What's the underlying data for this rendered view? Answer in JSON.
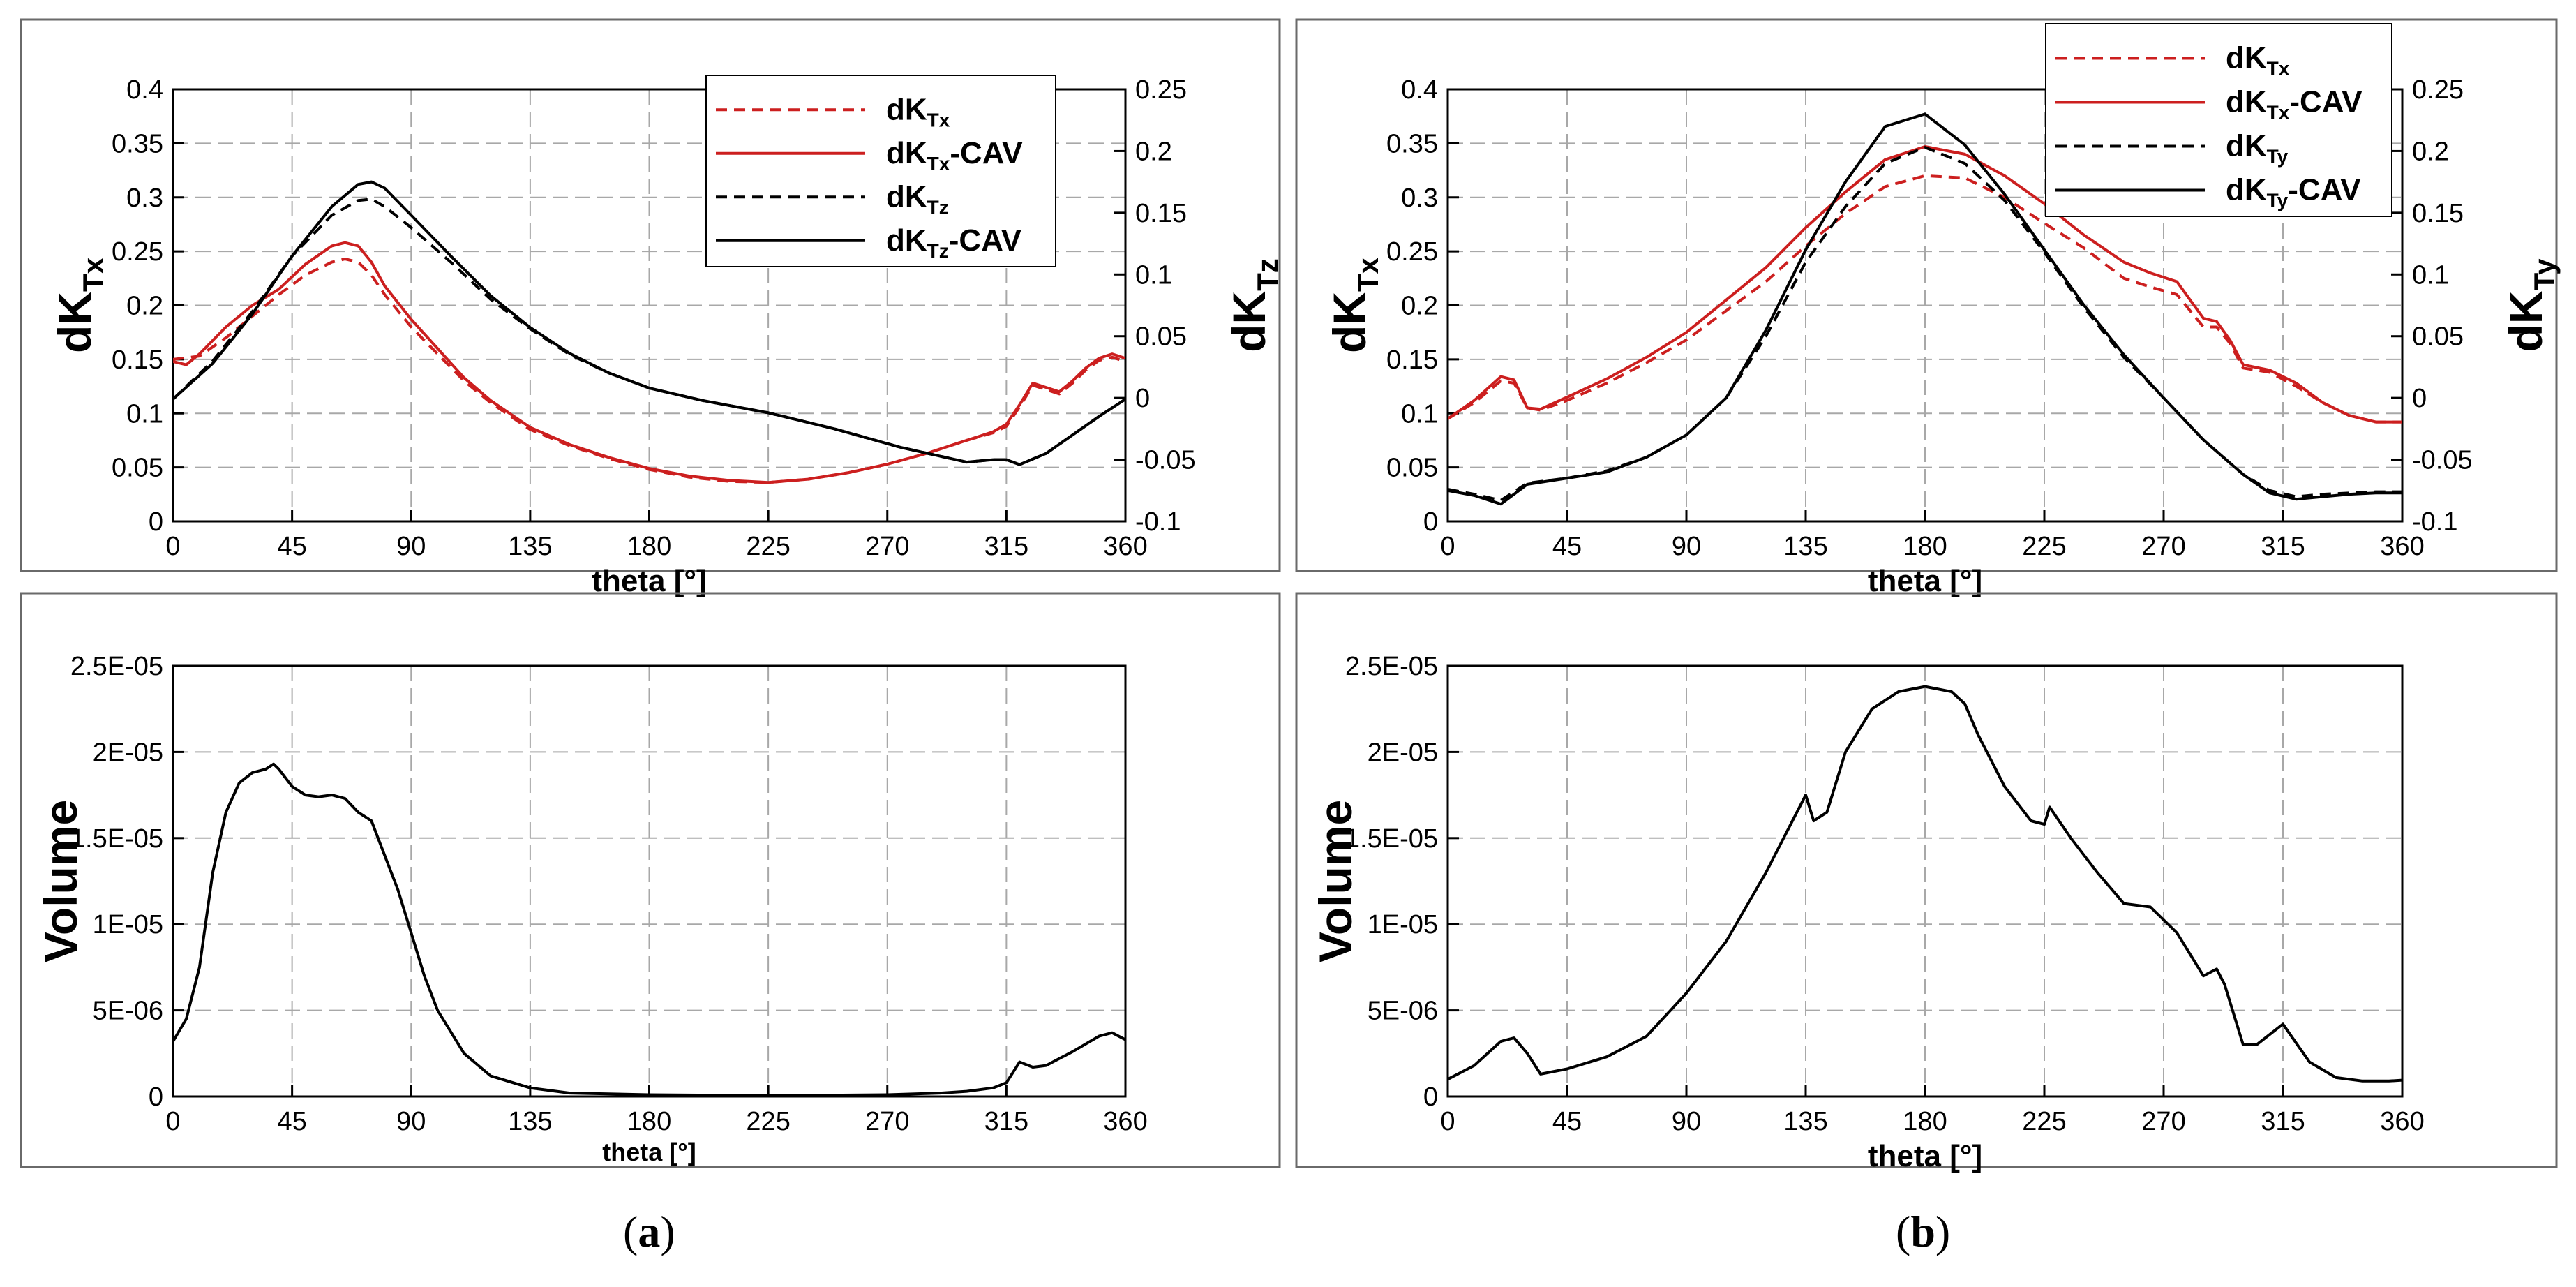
{
  "figure": {
    "captions": [
      {
        "open": "(",
        "letter": "a",
        "close": ")"
      },
      {
        "open": "(",
        "letter": "b",
        "close": ")"
      }
    ]
  },
  "colors": {
    "red": "#cc1f1f",
    "black": "#000000",
    "grid": "#a8a8a8",
    "frame": "#6a6a6a"
  },
  "chart_data": [
    {
      "id": "a-top",
      "type": "line",
      "xlabel": "theta [°]",
      "ylabel": {
        "base": "dK",
        "sub": "Tx"
      },
      "y2label": {
        "base": "dK",
        "sub": "Tz"
      },
      "xlim": [
        0,
        360
      ],
      "xticks": [
        0,
        45,
        90,
        135,
        180,
        225,
        270,
        315,
        360
      ],
      "ylim": [
        0,
        0.4
      ],
      "yticks": [
        0,
        0.05,
        0.1,
        0.15,
        0.2,
        0.25,
        0.3,
        0.35,
        0.4
      ],
      "ytick_labels": [
        "0",
        "0.05",
        "0.1",
        "0.15",
        "0.2",
        "0.25",
        "0.3",
        "0.35",
        "0.4"
      ],
      "y2lim": [
        -0.1,
        0.25
      ],
      "y2ticks": [
        -0.1,
        -0.05,
        0,
        0.05,
        0.1,
        0.15,
        0.2,
        0.25
      ],
      "y2tick_labels": [
        "-0.1",
        "-0.05",
        "0",
        "0.05",
        "0.1",
        "0.15",
        "0.2",
        "0.25"
      ],
      "legend": {
        "placement": "top-right"
      },
      "series": [
        {
          "name": {
            "base": "dK",
            "sub": "Tx",
            "suffix": ""
          },
          "color": "#cc1f1f",
          "dash": true,
          "axis": "left",
          "x": [
            0,
            10,
            20,
            30,
            40,
            50,
            60,
            65,
            70,
            75,
            80,
            90,
            100,
            110,
            120,
            135,
            150,
            165,
            180,
            195,
            210,
            225,
            240,
            255,
            270,
            285,
            300,
            310,
            315,
            320,
            325,
            330,
            335,
            340,
            345,
            350,
            355,
            360
          ],
          "y": [
            0.15,
            0.153,
            0.17,
            0.19,
            0.21,
            0.228,
            0.24,
            0.243,
            0.24,
            0.228,
            0.21,
            0.18,
            0.155,
            0.13,
            0.11,
            0.085,
            0.07,
            0.058,
            0.048,
            0.041,
            0.037,
            0.036,
            0.039,
            0.045,
            0.053,
            0.063,
            0.075,
            0.082,
            0.088,
            0.106,
            0.126,
            0.122,
            0.118,
            0.128,
            0.14,
            0.149,
            0.152,
            0.148
          ]
        },
        {
          "name": {
            "base": "dK",
            "sub": "Tx",
            "suffix": "-CAV"
          },
          "color": "#cc1f1f",
          "dash": false,
          "axis": "left",
          "x": [
            0,
            5,
            10,
            20,
            30,
            40,
            50,
            60,
            65,
            70,
            75,
            80,
            90,
            100,
            110,
            120,
            135,
            150,
            165,
            180,
            195,
            210,
            225,
            240,
            255,
            270,
            285,
            300,
            310,
            315,
            320,
            325,
            330,
            335,
            340,
            345,
            350,
            355,
            360
          ],
          "y": [
            0.148,
            0.145,
            0.155,
            0.18,
            0.2,
            0.215,
            0.238,
            0.255,
            0.258,
            0.255,
            0.24,
            0.218,
            0.187,
            0.16,
            0.133,
            0.112,
            0.087,
            0.071,
            0.059,
            0.049,
            0.042,
            0.038,
            0.036,
            0.039,
            0.045,
            0.053,
            0.063,
            0.075,
            0.083,
            0.09,
            0.108,
            0.128,
            0.124,
            0.12,
            0.13,
            0.142,
            0.151,
            0.155,
            0.151
          ]
        },
        {
          "name": {
            "base": "dK",
            "sub": "Tz",
            "suffix": ""
          },
          "color": "#000000",
          "dash": true,
          "axis": "right",
          "x": [
            0,
            15,
            30,
            45,
            60,
            70,
            75,
            80,
            90,
            105,
            120,
            135,
            150,
            165,
            180,
            200,
            225,
            250,
            275,
            300,
            310,
            315,
            320,
            330,
            340,
            350,
            360
          ],
          "y": [
            -0.001,
            0.03,
            0.07,
            0.115,
            0.148,
            0.16,
            0.161,
            0.155,
            0.138,
            0.11,
            0.08,
            0.056,
            0.035,
            0.02,
            0.008,
            -0.002,
            -0.012,
            -0.025,
            -0.04,
            -0.052,
            -0.05,
            -0.05,
            -0.054,
            -0.045,
            -0.03,
            -0.015,
            -0.001
          ]
        },
        {
          "name": {
            "base": "dK",
            "sub": "Tz",
            "suffix": "-CAV"
          },
          "color": "#000000",
          "dash": false,
          "axis": "right",
          "x": [
            0,
            15,
            30,
            45,
            60,
            70,
            75,
            80,
            90,
            105,
            120,
            135,
            150,
            165,
            180,
            200,
            225,
            250,
            275,
            300,
            310,
            315,
            320,
            330,
            340,
            350,
            360
          ],
          "y": [
            -0.001,
            0.028,
            0.068,
            0.115,
            0.155,
            0.173,
            0.175,
            0.17,
            0.148,
            0.115,
            0.083,
            0.057,
            0.036,
            0.02,
            0.008,
            -0.002,
            -0.012,
            -0.025,
            -0.04,
            -0.052,
            -0.05,
            -0.05,
            -0.054,
            -0.045,
            -0.03,
            -0.015,
            -0.001
          ]
        }
      ]
    },
    {
      "id": "b-top",
      "type": "line",
      "xlabel": "theta [°]",
      "ylabel": {
        "base": "dK",
        "sub": "Tx"
      },
      "y2label": {
        "base": "dK",
        "sub": "Ty"
      },
      "xlim": [
        0,
        360
      ],
      "xticks": [
        0,
        45,
        90,
        135,
        180,
        225,
        270,
        315,
        360
      ],
      "ylim": [
        0,
        0.4
      ],
      "yticks": [
        0,
        0.05,
        0.1,
        0.15,
        0.2,
        0.25,
        0.3,
        0.35,
        0.4
      ],
      "ytick_labels": [
        "0",
        "0.05",
        "0.1",
        "0.15",
        "0.2",
        "0.25",
        "0.3",
        "0.35",
        "0.4"
      ],
      "y2lim": [
        -0.1,
        0.25
      ],
      "y2ticks": [
        -0.1,
        -0.05,
        0,
        0.05,
        0.1,
        0.15,
        0.2,
        0.25
      ],
      "y2tick_labels": [
        "-0.1",
        "-0.05",
        "0",
        "0.05",
        "0.1",
        "0.15",
        "0.2",
        "0.25"
      ],
      "legend": {
        "placement": "top-right"
      },
      "series": [
        {
          "name": {
            "base": "dK",
            "sub": "Tx",
            "suffix": ""
          },
          "color": "#cc1f1f",
          "dash": true,
          "axis": "left",
          "x": [
            0,
            10,
            20,
            25,
            30,
            35,
            45,
            60,
            75,
            90,
            105,
            120,
            135,
            150,
            165,
            180,
            195,
            210,
            225,
            240,
            255,
            265,
            275,
            285,
            290,
            295,
            300,
            310,
            320,
            330,
            340,
            350,
            360
          ],
          "y": [
            0.095,
            0.11,
            0.13,
            0.128,
            0.105,
            0.103,
            0.112,
            0.128,
            0.147,
            0.168,
            0.195,
            0.222,
            0.255,
            0.285,
            0.31,
            0.32,
            0.318,
            0.3,
            0.276,
            0.253,
            0.225,
            0.217,
            0.21,
            0.18,
            0.18,
            0.165,
            0.142,
            0.138,
            0.125,
            0.11,
            0.098,
            0.092,
            0.092
          ]
        },
        {
          "name": {
            "base": "dK",
            "sub": "Tx",
            "suffix": "-CAV"
          },
          "color": "#cc1f1f",
          "dash": false,
          "axis": "left",
          "x": [
            0,
            10,
            20,
            25,
            30,
            35,
            45,
            60,
            75,
            90,
            105,
            120,
            135,
            150,
            165,
            180,
            195,
            210,
            225,
            240,
            255,
            265,
            275,
            285,
            290,
            295,
            300,
            310,
            320,
            330,
            340,
            350,
            360
          ],
          "y": [
            0.095,
            0.112,
            0.134,
            0.131,
            0.105,
            0.104,
            0.115,
            0.132,
            0.152,
            0.175,
            0.205,
            0.235,
            0.272,
            0.305,
            0.335,
            0.347,
            0.34,
            0.32,
            0.294,
            0.265,
            0.24,
            0.23,
            0.222,
            0.188,
            0.185,
            0.168,
            0.145,
            0.14,
            0.128,
            0.11,
            0.098,
            0.092,
            0.092
          ]
        },
        {
          "name": {
            "base": "dK",
            "sub": "Ty",
            "suffix": ""
          },
          "color": "#000000",
          "dash": true,
          "axis": "right",
          "x": [
            0,
            10,
            20,
            30,
            45,
            60,
            75,
            90,
            105,
            120,
            135,
            150,
            165,
            180,
            195,
            210,
            225,
            240,
            255,
            270,
            285,
            300,
            310,
            320,
            330,
            340,
            350,
            360
          ],
          "y": [
            -0.074,
            -0.078,
            -0.083,
            -0.069,
            -0.065,
            -0.059,
            -0.048,
            -0.03,
            0.0,
            0.05,
            0.11,
            0.155,
            0.19,
            0.203,
            0.19,
            0.16,
            0.118,
            0.073,
            0.033,
            0.0,
            -0.034,
            -0.062,
            -0.075,
            -0.08,
            -0.078,
            -0.077,
            -0.076,
            -0.076
          ]
        },
        {
          "name": {
            "base": "dK",
            "sub": "Ty",
            "suffix": "-CAV"
          },
          "color": "#000000",
          "dash": false,
          "axis": "right",
          "x": [
            0,
            10,
            20,
            30,
            45,
            60,
            75,
            90,
            105,
            120,
            135,
            150,
            165,
            180,
            195,
            210,
            225,
            240,
            255,
            270,
            285,
            300,
            310,
            320,
            330,
            340,
            350,
            360
          ],
          "y": [
            -0.075,
            -0.079,
            -0.086,
            -0.07,
            -0.065,
            -0.06,
            -0.048,
            -0.03,
            0.0,
            0.055,
            0.12,
            0.175,
            0.22,
            0.23,
            0.205,
            0.165,
            0.12,
            0.075,
            0.035,
            0.0,
            -0.034,
            -0.062,
            -0.077,
            -0.082,
            -0.08,
            -0.078,
            -0.077,
            -0.077
          ]
        }
      ]
    },
    {
      "id": "a-bottom",
      "type": "line",
      "xlabel": "theta [°]",
      "ylabel": {
        "base": "Volume",
        "sub": ""
      },
      "xlim": [
        0,
        360
      ],
      "xticks": [
        0,
        45,
        90,
        135,
        180,
        225,
        270,
        315,
        360
      ],
      "ylim": [
        0,
        2.5e-05
      ],
      "yticks": [
        0,
        5e-06,
        1e-05,
        1.5e-05,
        2e-05,
        2.5e-05
      ],
      "ytick_labels": [
        "0",
        "5E-06",
        "1E-05",
        "1.5E-05",
        "2E-05",
        "2.5E-05"
      ],
      "series": [
        {
          "name": {
            "base": "Volume",
            "sub": "",
            "suffix": ""
          },
          "color": "#000000",
          "dash": false,
          "axis": "left",
          "x": [
            0,
            5,
            10,
            15,
            20,
            25,
            30,
            35,
            38,
            40,
            45,
            50,
            55,
            60,
            65,
            70,
            75,
            80,
            85,
            90,
            95,
            100,
            110,
            120,
            135,
            150,
            180,
            225,
            270,
            290,
            300,
            310,
            315,
            320,
            325,
            330,
            340,
            350,
            355,
            360
          ],
          "y": [
            3.2e-06,
            4.5e-06,
            7.5e-06,
            1.3e-05,
            1.65e-05,
            1.82e-05,
            1.88e-05,
            1.9e-05,
            1.93e-05,
            1.9e-05,
            1.8e-05,
            1.75e-05,
            1.74e-05,
            1.75e-05,
            1.73e-05,
            1.65e-05,
            1.6e-05,
            1.4e-05,
            1.2e-05,
            9.5e-06,
            7e-06,
            5e-06,
            2.5e-06,
            1.2e-06,
            5e-07,
            2e-07,
            1e-07,
            5e-08,
            1e-07,
            2e-07,
            3e-07,
            5e-07,
            8e-07,
            2e-06,
            1.7e-06,
            1.8e-06,
            2.6e-06,
            3.5e-06,
            3.7e-06,
            3.3e-06
          ]
        }
      ]
    },
    {
      "id": "b-bottom",
      "type": "line",
      "xlabel": "theta [°]",
      "ylabel": {
        "base": "Volume",
        "sub": ""
      },
      "xlim": [
        0,
        360
      ],
      "xticks": [
        0,
        45,
        90,
        135,
        180,
        225,
        270,
        315,
        360
      ],
      "ylim": [
        0,
        2.5e-05
      ],
      "yticks": [
        0,
        5e-06,
        1e-05,
        1.5e-05,
        2e-05,
        2.5e-05
      ],
      "ytick_labels": [
        "0",
        "5E-06",
        "1E-05",
        "1.5E-05",
        "2E-05",
        "2.5E-05"
      ],
      "series": [
        {
          "name": {
            "base": "Volume",
            "sub": "",
            "suffix": ""
          },
          "color": "#000000",
          "dash": false,
          "axis": "left",
          "x": [
            0,
            10,
            20,
            25,
            30,
            35,
            45,
            60,
            75,
            90,
            105,
            120,
            130,
            135,
            138,
            143,
            150,
            160,
            170,
            180,
            190,
            195,
            200,
            210,
            220,
            225,
            227,
            235,
            245,
            255,
            265,
            275,
            285,
            290,
            293,
            300,
            305,
            315,
            325,
            335,
            345,
            355,
            360
          ],
          "y": [
            1e-06,
            1.8e-06,
            3.2e-06,
            3.4e-06,
            2.5e-06,
            1.3e-06,
            1.6e-06,
            2.3e-06,
            3.5e-06,
            6e-06,
            9e-06,
            1.3e-05,
            1.6e-05,
            1.75e-05,
            1.6e-05,
            1.65e-05,
            2e-05,
            2.25e-05,
            2.35e-05,
            2.38e-05,
            2.35e-05,
            2.28e-05,
            2.1e-05,
            1.8e-05,
            1.6e-05,
            1.58e-05,
            1.68e-05,
            1.5e-05,
            1.3e-05,
            1.12e-05,
            1.1e-05,
            9.5e-06,
            7e-06,
            7.4e-06,
            6.5e-06,
            3e-06,
            3e-06,
            4.2e-06,
            2e-06,
            1.1e-06,
            9e-07,
            9e-07,
            9.5e-07
          ]
        }
      ]
    }
  ]
}
